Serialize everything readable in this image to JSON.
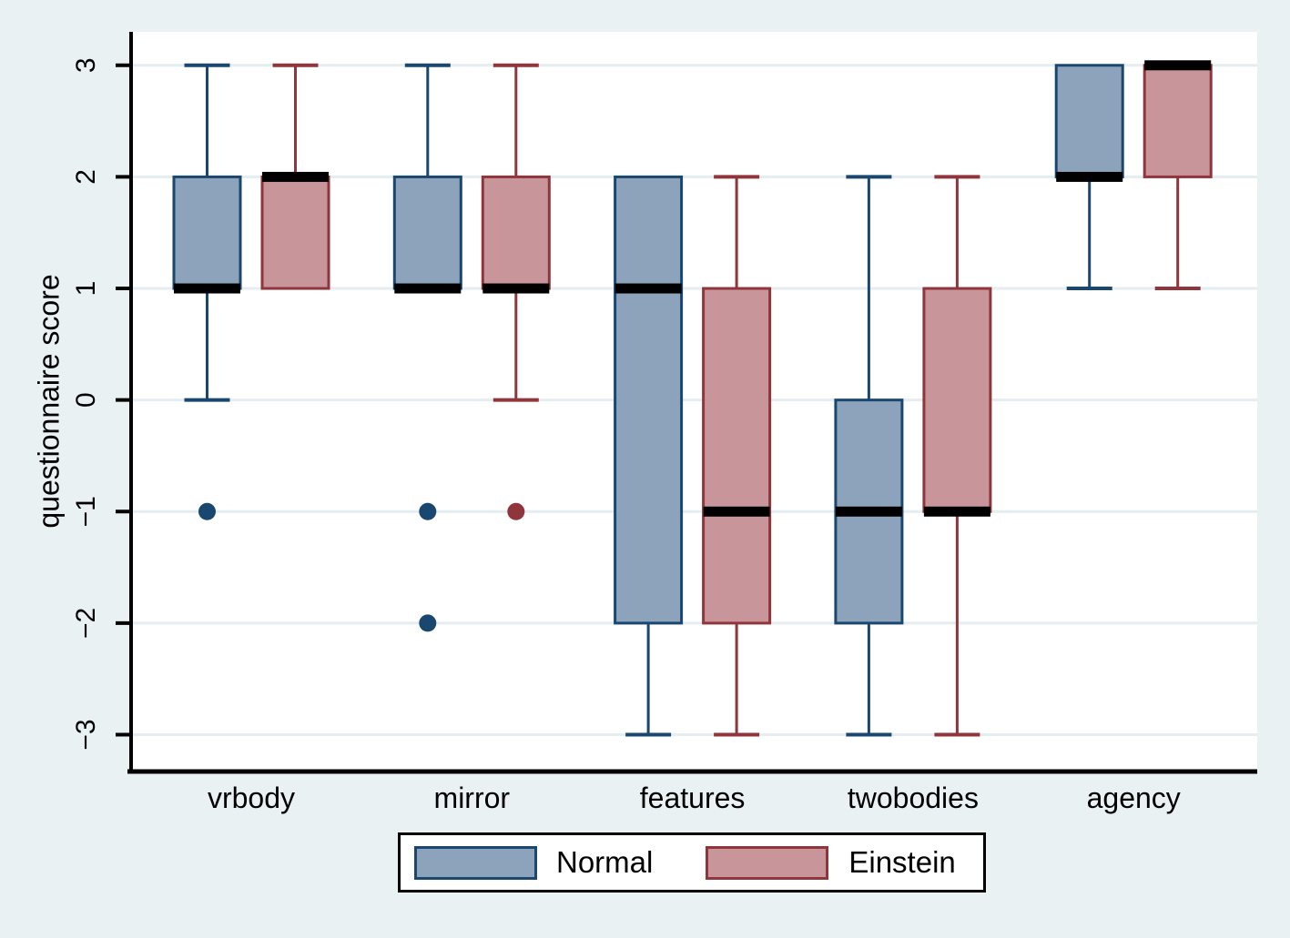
{
  "chart_data": {
    "type": "box",
    "title": "",
    "ylabel": "questionnaire score",
    "xlabel": "",
    "ylim": [
      -3.33,
      3.3
    ],
    "grid": true,
    "legend_position": "bottom",
    "background": "#EAF1F3",
    "plot_background": "#FFFFFF",
    "gridline_color": "#E4EDF0",
    "axis_color": "#000000",
    "median_color": "#000000",
    "yticks": [
      3,
      2,
      1,
      0,
      -1,
      -2,
      -3
    ],
    "ytick_labels": [
      "3",
      "2",
      "1",
      "0",
      "−1",
      "−2",
      "−3"
    ],
    "categories": [
      "vrbody",
      "mirror",
      "features",
      "twobodies",
      "agency"
    ],
    "series": [
      {
        "name": "Normal",
        "fill": "#8CA3BB",
        "stroke": "#1A476F",
        "boxes": [
          {
            "category": "vrbody",
            "whisker_low": 0,
            "q1": 1,
            "median": 1,
            "q3": 2,
            "whisker_high": 3,
            "outliers": [
              -1
            ]
          },
          {
            "category": "mirror",
            "whisker_low": 1,
            "q1": 1,
            "median": 1,
            "q3": 2,
            "whisker_high": 3,
            "outliers": [
              -1,
              -2
            ]
          },
          {
            "category": "features",
            "whisker_low": -3,
            "q1": -2,
            "median": 1,
            "q3": 2,
            "whisker_high": 2,
            "outliers": []
          },
          {
            "category": "twobodies",
            "whisker_low": -3,
            "q1": -2,
            "median": -1,
            "q3": 0,
            "whisker_high": 2,
            "outliers": []
          },
          {
            "category": "agency",
            "whisker_low": 1,
            "q1": 2,
            "median": 2,
            "q3": 3,
            "whisker_high": 3,
            "outliers": []
          }
        ]
      },
      {
        "name": "Einstein",
        "fill": "#C8959B",
        "stroke": "#90353B",
        "boxes": [
          {
            "category": "vrbody",
            "whisker_low": 1,
            "q1": 1,
            "median": 2,
            "q3": 2,
            "whisker_high": 3,
            "outliers": []
          },
          {
            "category": "mirror",
            "whisker_low": 0,
            "q1": 1,
            "median": 1,
            "q3": 2,
            "whisker_high": 3,
            "outliers": [
              -1
            ]
          },
          {
            "category": "features",
            "whisker_low": -3,
            "q1": -2,
            "median": -1,
            "q3": 1,
            "whisker_high": 2,
            "outliers": []
          },
          {
            "category": "twobodies",
            "whisker_low": -3,
            "q1": -1,
            "median": -1,
            "q3": 1,
            "whisker_high": 2,
            "outliers": []
          },
          {
            "category": "agency",
            "whisker_low": 1,
            "q1": 2,
            "median": 3,
            "q3": 3,
            "whisker_high": 3,
            "outliers": []
          }
        ]
      }
    ]
  },
  "legend": {
    "items": [
      {
        "label": "Normal"
      },
      {
        "label": "Einstein"
      }
    ]
  }
}
